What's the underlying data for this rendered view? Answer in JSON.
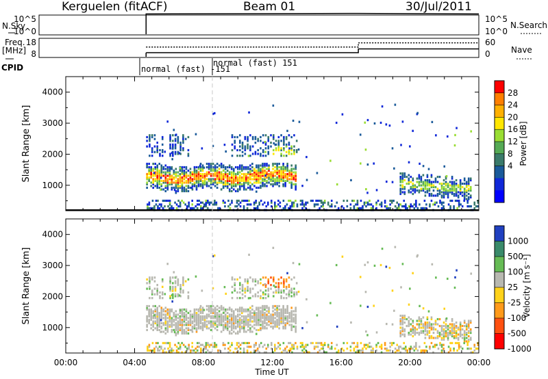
{
  "header": {
    "station": "Kerguelen (fitACF)",
    "beam": "Beam 01",
    "date": "30/Jul/2011"
  },
  "noise_panel": {
    "left_label": "N.Sky",
    "right_label": "N.Search",
    "left_ticks": [
      "10^5",
      "10^0"
    ],
    "right_ticks": [
      "10^5",
      "10^0"
    ]
  },
  "freq_panel": {
    "left_label_1": "Freq.",
    "left_label_2": "[MHz]",
    "right_label": "Nave",
    "left_ticks": [
      "18",
      "8"
    ],
    "right_ticks": [
      "60",
      "0"
    ]
  },
  "cpid": {
    "label": "CPID",
    "mode_1": "normal (fast) -151",
    "mode_2": "normal (fast) 151"
  },
  "power_colorbar": {
    "label": "Power [dB]",
    "ticks": [
      "28",
      "24",
      "20",
      "16",
      "12",
      "8",
      "4"
    ],
    "colors": [
      "#ff0000",
      "#ff7f00",
      "#ffb000",
      "#ffe600",
      "#99dd33",
      "#55aa55",
      "#3a7a6a",
      "#1a5a9a",
      "#1028d8",
      "#0000ff"
    ]
  },
  "velocity_colorbar": {
    "label": "Velocity [m s⁻¹]",
    "ticks": [
      "1000",
      "500",
      "100",
      "25",
      "-25",
      "-100",
      "-500",
      "-1000"
    ],
    "colors": [
      "#2040c0",
      "#3a8a6a",
      "#66bb55",
      "#b8b8b0",
      "#ffd21a",
      "#ff9a1a",
      "#ff5010",
      "#ff0000"
    ]
  },
  "chart_data": [
    {
      "type": "line",
      "panel": "noise",
      "xlabel": "",
      "ylabel": "N.Sky",
      "xlim": [
        "00:00",
        "24:00"
      ],
      "ylim": [
        "10^0",
        "10^5"
      ],
      "series": [
        {
          "name": "N.Sky",
          "x": [
            "04:40",
            "17:00",
            "24:00"
          ],
          "y": [
            500000,
            700000,
            500000
          ]
        },
        {
          "name": "N.Search",
          "x": [
            "04:40",
            "24:00"
          ],
          "y": [
            100,
            100
          ]
        }
      ]
    },
    {
      "type": "line",
      "panel": "frequency",
      "ylabel": "Freq. [MHz]",
      "ylim": [
        8,
        18
      ],
      "series": [
        {
          "name": "Freq.",
          "x": [
            "04:40",
            "17:00",
            "17:00",
            "24:00"
          ],
          "y": [
            10.3,
            10.3,
            12.4,
            12.4
          ]
        },
        {
          "name": "Nave",
          "x": [
            "04:40",
            "17:00",
            "17:00",
            "24:00"
          ],
          "y": [
            33,
            33,
            47,
            47
          ]
        }
      ]
    },
    {
      "type": "heatmap",
      "panel": "power",
      "xlabel": "",
      "ylabel": "Slant Range [km]",
      "xlim": [
        "00:00",
        "24:00"
      ],
      "ylim": [
        180,
        4500
      ],
      "x_ticks": [
        "00:00",
        "04:00",
        "08:00",
        "12:00",
        "16:00",
        "20:00",
        "00:00"
      ],
      "y_ticks": [
        1000,
        2000,
        3000,
        4000
      ],
      "colorbar": "Power [dB]"
    },
    {
      "type": "heatmap",
      "panel": "velocity",
      "xlabel": "Time UT",
      "ylabel": "Slant Range [km]",
      "xlim": [
        "00:00",
        "24:00"
      ],
      "ylim": [
        180,
        4500
      ],
      "x_ticks": [
        "00:00",
        "04:00",
        "08:00",
        "12:00",
        "16:00",
        "20:00",
        "00:00"
      ],
      "y_ticks": [
        1000,
        2000,
        3000,
        4000
      ],
      "colorbar": "Velocity [m s⁻¹]"
    }
  ]
}
